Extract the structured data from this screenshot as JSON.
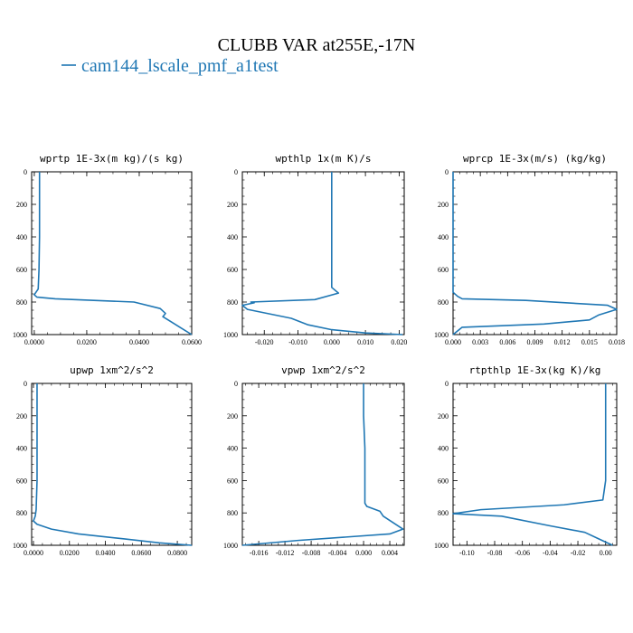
{
  "figure": {
    "title": "CLUBB VAR at255E,-17N",
    "legend": [
      {
        "label": "cam144_lscale_pmf_a1test",
        "color": "#1f77b4"
      }
    ]
  },
  "chart_data": [
    {
      "type": "line",
      "title": "wprtp  1E-3x(m kg)/(s kg)",
      "xlim": [
        -0.001,
        0.06
      ],
      "ylim": [
        1000,
        0
      ],
      "xticks": [
        0.0,
        0.02,
        0.04,
        0.06
      ],
      "xtick_labels": [
        "0.0000",
        "0.0200",
        "0.0400",
        "0.0600"
      ],
      "yticks": [
        0,
        200,
        400,
        600,
        800,
        1000
      ],
      "ytick_labels": [
        "0",
        "200",
        "400",
        "600",
        "800",
        "1000"
      ],
      "series": [
        {
          "color": "#1f77b4",
          "x": [
            0.002,
            0.002,
            0.002,
            0.0018,
            0.0015,
            0.0,
            0.001,
            0.008,
            0.038,
            0.048,
            0.05,
            0.049,
            0.052,
            0.056,
            0.06
          ],
          "y": [
            0,
            200,
            400,
            600,
            720,
            755,
            770,
            780,
            800,
            840,
            870,
            890,
            920,
            960,
            1000
          ]
        }
      ]
    },
    {
      "type": "line",
      "title": "wpthlp  1x(m K)/s",
      "xlim": [
        -0.0265,
        0.0215
      ],
      "ylim": [
        1000,
        0
      ],
      "xticks": [
        -0.02,
        -0.01,
        0.0,
        0.01,
        0.02
      ],
      "xtick_labels": [
        "-0.020",
        "-0.010",
        "0.000",
        "0.010",
        "0.020"
      ],
      "yticks": [
        0,
        200,
        400,
        600,
        800,
        1000
      ],
      "ytick_labels": [
        "0",
        "200",
        "400",
        "600",
        "800",
        "1000"
      ],
      "series": [
        {
          "color": "#1f77b4",
          "x": [
            0.0,
            0.0,
            0.0,
            0.0,
            0.0,
            0.002,
            -0.005,
            -0.024,
            -0.023,
            -0.0265,
            -0.025,
            -0.012,
            -0.007,
            0.0,
            0.01,
            0.021
          ],
          "y": [
            0,
            200,
            400,
            600,
            710,
            745,
            785,
            800,
            805,
            820,
            845,
            900,
            940,
            970,
            990,
            1000
          ]
        }
      ]
    },
    {
      "type": "line",
      "title": "wprcp  1E-3x(m/s) (kg/kg)",
      "xlim": [
        0.0,
        0.018
      ],
      "ylim": [
        1000,
        0
      ],
      "xticks": [
        0.0,
        0.003,
        0.006,
        0.009,
        0.012,
        0.015,
        0.018
      ],
      "xtick_labels": [
        "0.000",
        "0.003",
        "0.006",
        "0.009",
        "0.012",
        "0.015",
        "0.018"
      ],
      "yticks": [
        0,
        200,
        400,
        600,
        800,
        1000
      ],
      "ytick_labels": [
        "0",
        "200",
        "400",
        "600",
        "800",
        "1000"
      ],
      "series": [
        {
          "color": "#1f77b4",
          "x": [
            0.0,
            0.0,
            0.0,
            0.0,
            0.0,
            0.0005,
            0.001,
            0.008,
            0.017,
            0.018,
            0.016,
            0.015,
            0.01,
            0.001,
            0.0
          ],
          "y": [
            0,
            200,
            400,
            600,
            740,
            765,
            780,
            790,
            820,
            845,
            880,
            910,
            935,
            955,
            1000
          ]
        }
      ]
    },
    {
      "type": "line",
      "title": "upwp  1xm^2/s^2",
      "xlim": [
        -0.001,
        0.088
      ],
      "ylim": [
        1000,
        0
      ],
      "xticks": [
        0.0,
        0.02,
        0.04,
        0.06,
        0.08
      ],
      "xtick_labels": [
        "0.0000",
        "0.0200",
        "0.0400",
        "0.0600",
        "0.0800"
      ],
      "yticks": [
        0,
        200,
        400,
        600,
        800,
        1000
      ],
      "ytick_labels": [
        "0",
        "200",
        "400",
        "600",
        "800",
        "1000"
      ],
      "series": [
        {
          "color": "#1f77b4",
          "x": [
            0.002,
            0.002,
            0.002,
            0.002,
            0.0015,
            0.001,
            0.0,
            0.002,
            0.01,
            0.025,
            0.05,
            0.07,
            0.088
          ],
          "y": [
            0,
            200,
            400,
            600,
            780,
            820,
            850,
            870,
            900,
            930,
            960,
            985,
            1000
          ]
        }
      ]
    },
    {
      "type": "line",
      "title": "vpwp  1xm^2/s^2",
      "xlim": [
        -0.0185,
        0.0062
      ],
      "ylim": [
        1000,
        0
      ],
      "xticks": [
        -0.016,
        -0.012,
        -0.008,
        -0.004,
        0.0,
        0.004
      ],
      "xtick_labels": [
        "-0.016",
        "-0.012",
        "-0.008",
        "-0.004",
        "0.000",
        "0.004"
      ],
      "yticks": [
        0,
        200,
        400,
        600,
        800,
        1000
      ],
      "ytick_labels": [
        "0",
        "200",
        "400",
        "600",
        "800",
        "1000"
      ],
      "series": [
        {
          "color": "#1f77b4",
          "x": [
            0.0,
            0.0,
            0.0002,
            0.0002,
            0.0002,
            0.0005,
            0.0025,
            0.003,
            0.0045,
            0.006,
            0.004,
            -0.01,
            -0.0185
          ],
          "y": [
            0,
            200,
            400,
            600,
            740,
            760,
            790,
            820,
            860,
            900,
            930,
            970,
            1000
          ]
        }
      ]
    },
    {
      "type": "line",
      "title": "rtpthlp  1E-3x(kg K)/kg",
      "xlim": [
        -0.11,
        0.008
      ],
      "ylim": [
        1000,
        0
      ],
      "xticks": [
        -0.1,
        -0.08,
        -0.06,
        -0.04,
        -0.02,
        0.0
      ],
      "xtick_labels": [
        "-0.10",
        "-0.08",
        "-0.06",
        "-0.04",
        "-0.02",
        "0.00"
      ],
      "yticks": [
        0,
        200,
        400,
        600,
        800,
        1000
      ],
      "ytick_labels": [
        "0",
        "200",
        "400",
        "600",
        "800",
        "1000"
      ],
      "series": [
        {
          "color": "#1f77b4",
          "x": [
            0.0,
            0.0,
            0.0,
            0.0,
            -0.002,
            -0.03,
            -0.09,
            -0.11,
            -0.075,
            -0.04,
            -0.015,
            -0.005,
            0.005
          ],
          "y": [
            0,
            200,
            400,
            600,
            720,
            750,
            780,
            805,
            820,
            880,
            920,
            960,
            1000
          ]
        }
      ]
    }
  ]
}
